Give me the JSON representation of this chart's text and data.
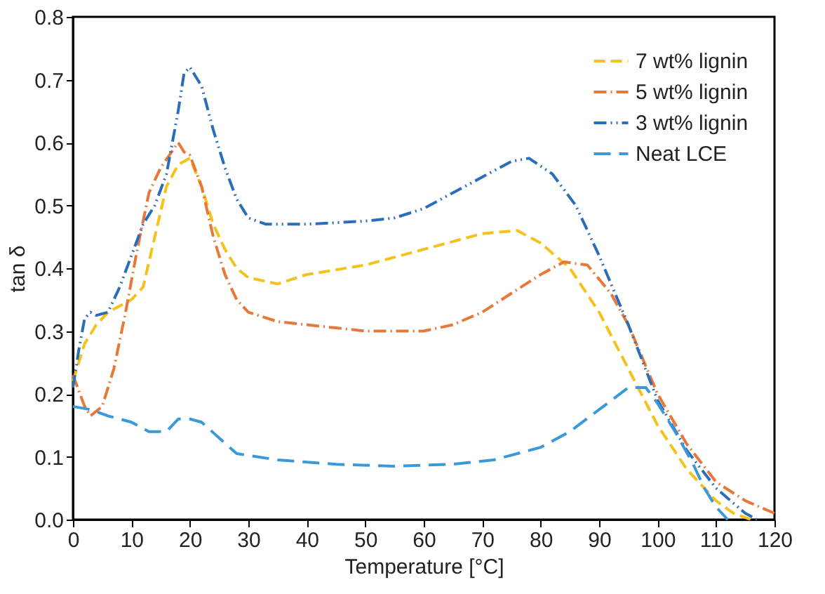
{
  "chart_data": {
    "type": "line",
    "xlabel": "Temperature [°C]",
    "ylabel": "tan δ",
    "xlim": [
      0,
      120
    ],
    "xticks": [
      0,
      10,
      20,
      30,
      40,
      50,
      60,
      70,
      80,
      90,
      100,
      110,
      120
    ],
    "ylim": [
      0,
      0.8
    ],
    "yticks": [
      {
        "value": 0,
        "label": "0.0"
      },
      0.1,
      0.2,
      0.3,
      0.4,
      0.5,
      0.6,
      0.7,
      0.8
    ],
    "grid": false,
    "legend": "top right",
    "line_style": "dashed",
    "marker": "none",
    "series": [
      {
        "name": "7 wt% lignin",
        "color": "#f5c21b",
        "x": [
          0,
          2,
          4,
          6,
          8,
          10,
          12,
          14,
          16,
          18,
          20,
          22,
          24,
          26,
          28,
          30,
          35,
          40,
          50,
          60,
          70,
          76,
          80,
          85,
          90,
          95,
          100,
          105,
          110,
          113,
          116
        ],
        "values": [
          0.22,
          0.28,
          0.31,
          0.33,
          0.34,
          0.35,
          0.37,
          0.45,
          0.53,
          0.565,
          0.575,
          0.53,
          0.47,
          0.43,
          0.4,
          0.385,
          0.375,
          0.39,
          0.405,
          0.43,
          0.455,
          0.46,
          0.44,
          0.4,
          0.33,
          0.24,
          0.15,
          0.08,
          0.03,
          0.01,
          0.0
        ]
      },
      {
        "name": "5 wt% lignin",
        "color": "#e8773a",
        "x": [
          0,
          2,
          3,
          5,
          7,
          9,
          11,
          13,
          15,
          18,
          19,
          20,
          22,
          24,
          26,
          28,
          30,
          35,
          40,
          50,
          60,
          65,
          70,
          75,
          80,
          84,
          88,
          92,
          95,
          100,
          105,
          110,
          115,
          120
        ],
        "values": [
          0.23,
          0.18,
          0.165,
          0.18,
          0.24,
          0.33,
          0.43,
          0.52,
          0.56,
          0.6,
          0.585,
          0.58,
          0.53,
          0.45,
          0.39,
          0.35,
          0.33,
          0.315,
          0.31,
          0.3,
          0.3,
          0.31,
          0.33,
          0.36,
          0.39,
          0.41,
          0.405,
          0.36,
          0.31,
          0.2,
          0.12,
          0.06,
          0.03,
          0.01
        ]
      },
      {
        "name": "3 wt% lignin",
        "color": "#2a6ebb",
        "x": [
          0,
          1,
          2,
          3,
          4,
          6,
          8,
          10,
          12,
          14,
          16,
          18,
          19,
          20,
          22,
          24,
          26,
          28,
          30,
          33,
          40,
          50,
          55,
          60,
          70,
          75,
          78,
          82,
          86,
          90,
          95,
          100,
          105,
          110,
          115,
          117
        ],
        "values": [
          0.21,
          0.27,
          0.32,
          0.33,
          0.325,
          0.33,
          0.37,
          0.42,
          0.47,
          0.5,
          0.55,
          0.65,
          0.71,
          0.72,
          0.69,
          0.62,
          0.56,
          0.51,
          0.48,
          0.47,
          0.47,
          0.475,
          0.48,
          0.495,
          0.545,
          0.57,
          0.575,
          0.55,
          0.5,
          0.42,
          0.31,
          0.19,
          0.11,
          0.05,
          0.01,
          0.0
        ]
      },
      {
        "name": "Neat LCE",
        "color": "#3a9ad9",
        "x": [
          0,
          3,
          6,
          10,
          13,
          16,
          18,
          20,
          22,
          25,
          28,
          35,
          45,
          55,
          65,
          72,
          80,
          85,
          90,
          95,
          98,
          100,
          103,
          106,
          108,
          110,
          112
        ],
        "values": [
          0.18,
          0.175,
          0.165,
          0.155,
          0.14,
          0.14,
          0.16,
          0.16,
          0.155,
          0.13,
          0.105,
          0.095,
          0.088,
          0.085,
          0.088,
          0.095,
          0.115,
          0.14,
          0.175,
          0.21,
          0.21,
          0.185,
          0.14,
          0.09,
          0.05,
          0.02,
          0.0
        ]
      }
    ]
  }
}
